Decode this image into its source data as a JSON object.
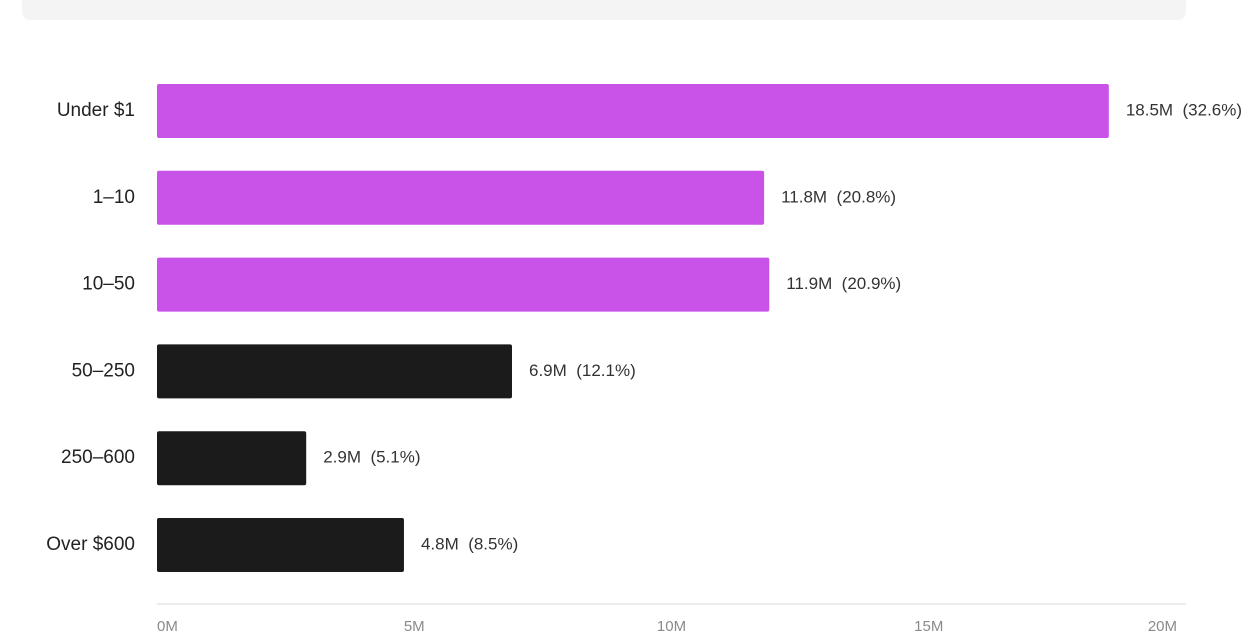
{
  "chart_data": {
    "type": "bar",
    "orientation": "horizontal",
    "categories": [
      "Under $1",
      "1–10",
      "10–50",
      "50–250",
      "250–600",
      "Over $600"
    ],
    "values": [
      18.5,
      11.8,
      11.9,
      6.9,
      2.9,
      4.8
    ],
    "value_labels": [
      "18.5M",
      "11.8M",
      "11.9M",
      "6.9M",
      "2.9M",
      "4.8M"
    ],
    "percent_labels": [
      "(32.6%)",
      "(20.8%)",
      "(20.9%)",
      "(12.1%)",
      "(5.1%)",
      "(8.5%)"
    ],
    "bar_colors": [
      "#c952e8",
      "#c952e8",
      "#c952e8",
      "#1b1b1b",
      "#1b1b1b",
      "#1b1b1b"
    ],
    "xlim": [
      0,
      20
    ],
    "xticks": [
      0,
      5,
      10,
      15,
      20
    ],
    "xtick_labels": [
      "0M",
      "5M",
      "10M",
      "15M",
      "20M"
    ],
    "grid": false,
    "title": "",
    "xlabel": "",
    "ylabel": ""
  },
  "colors": {
    "accent": "#c952e8",
    "dark": "#1b1b1b",
    "axis": "#d9d9d9",
    "panel": "#f4f4f4"
  }
}
